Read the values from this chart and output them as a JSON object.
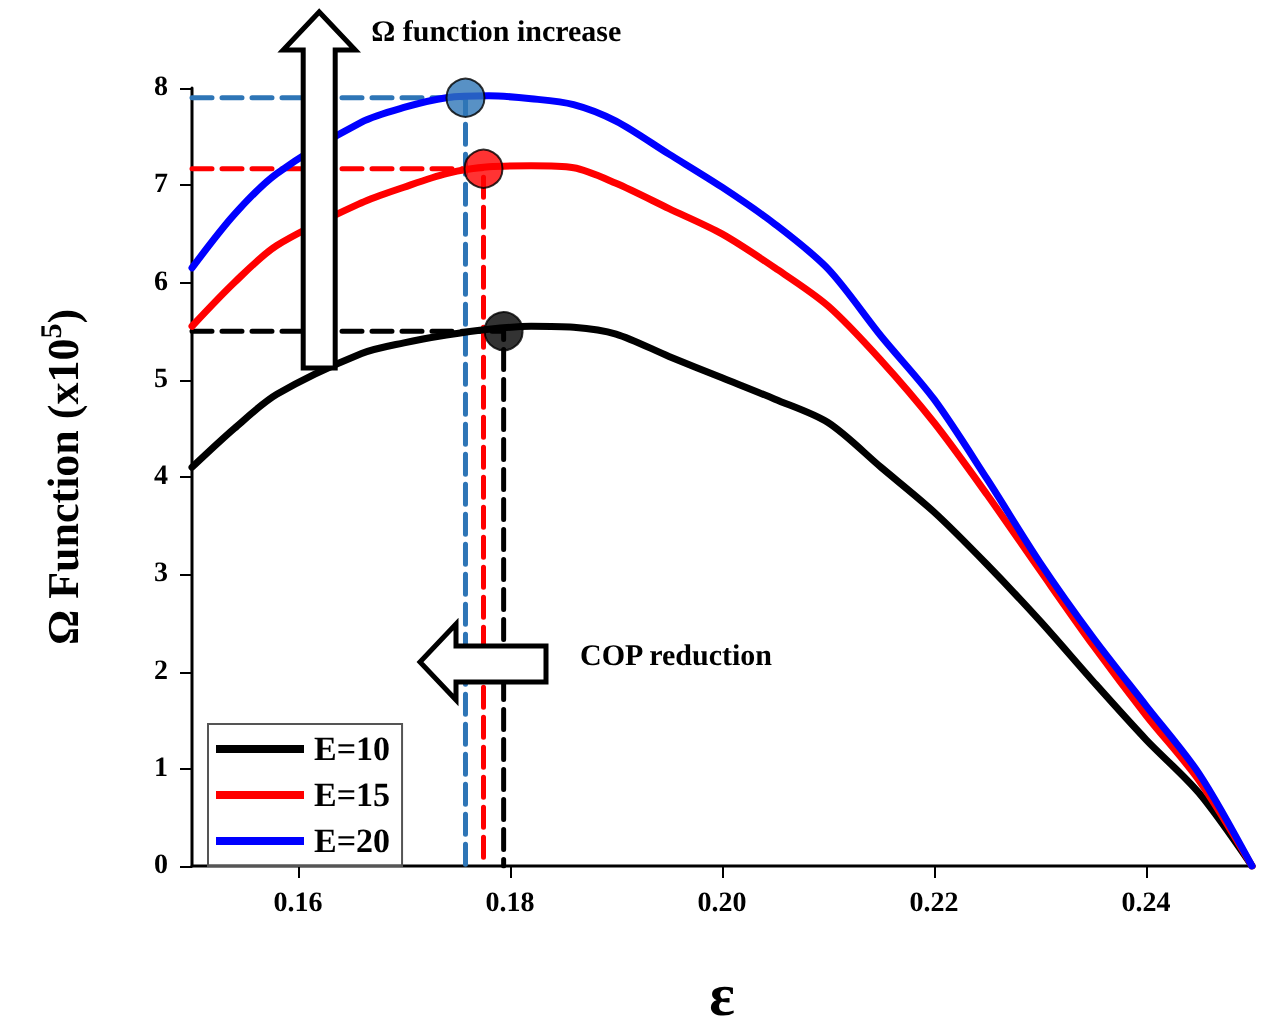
{
  "chart_data": {
    "type": "line",
    "xlabel": "ε",
    "ylabel": "Ω Function (x10$^{5}$)",
    "xlim": [
      0.15,
      0.25
    ],
    "xticks": [
      0.16,
      0.18,
      {
        "value": 0.2,
        "label": "0.20"
      },
      0.22,
      0.24
    ],
    "ylim": [
      0,
      8
    ],
    "yticks": [
      0,
      1,
      2,
      3,
      4,
      5,
      6,
      7,
      8
    ],
    "grid": false,
    "legend": "bottom left",
    "line_style": "solid",
    "marker": "none",
    "annotations": [
      {
        "text": "Ω function increase",
        "x": 0.162,
        "y": 8
      },
      "COP reduction"
    ],
    "series": [
      {
        "name": "E=10",
        "color": "#000000",
        "x": [
          0.15,
          0.154,
          0.158,
          0.166,
          0.17,
          0.174,
          0.178,
          0.182,
          0.186,
          0.19,
          0.195,
          0.2,
          0.205,
          0.21,
          0.215,
          0.22,
          0.225,
          0.23,
          0.235,
          0.24,
          0.245,
          0.25
        ],
        "values": [
          4.1,
          4.5,
          4.85,
          5.27,
          5.38,
          5.46,
          5.52,
          5.55,
          5.54,
          5.47,
          5.24,
          5.02,
          4.8,
          4.56,
          4.1,
          3.64,
          3.1,
          2.52,
          1.9,
          1.3,
          0.75,
          0
        ]
      },
      {
        "name": "E=15",
        "color": "#ff0000",
        "x": [
          0.15,
          0.154,
          0.158,
          0.166,
          0.17,
          0.174,
          0.178,
          0.182,
          0.186,
          0.19,
          0.195,
          0.2,
          0.205,
          0.21,
          0.215,
          0.22,
          0.225,
          0.23,
          0.235,
          0.24,
          0.245,
          0.25
        ],
        "values": [
          5.55,
          6.0,
          6.38,
          6.82,
          6.98,
          7.12,
          7.19,
          7.2,
          7.18,
          7.02,
          6.76,
          6.5,
          6.15,
          5.76,
          5.2,
          4.56,
          3.82,
          3.04,
          2.27,
          1.55,
          0.88,
          0
        ]
      },
      {
        "name": "E=20",
        "color": "#0000ff",
        "x": [
          0.15,
          0.154,
          0.158,
          0.166,
          0.17,
          0.174,
          0.178,
          0.182,
          0.186,
          0.19,
          0.195,
          0.2,
          0.205,
          0.21,
          0.215,
          0.22,
          0.225,
          0.23,
          0.235,
          0.24,
          0.245,
          0.25
        ],
        "values": [
          6.15,
          6.7,
          7.12,
          7.65,
          7.8,
          7.9,
          7.92,
          7.89,
          7.83,
          7.66,
          7.32,
          6.98,
          6.6,
          6.14,
          5.45,
          4.8,
          3.98,
          3.12,
          2.35,
          1.65,
          0.95,
          0
        ]
      },
      {
        "type": "line",
        "line_style": "dashed",
        "color": "#000000",
        "x": [
          0.15,
          0.1794,
          0.1794
        ],
        "values": [
          5.5,
          5.5,
          0
        ]
      },
      {
        "type": "line",
        "line_style": "dashed",
        "color": "#ff0000",
        "x": [
          0.15,
          0.1775,
          0.1775
        ],
        "values": [
          7.17,
          7.17,
          0
        ]
      },
      {
        "type": "line",
        "line_style": "dashed",
        "color": "#2e75b6",
        "x": [
          0.15,
          0.1758,
          0.1758
        ],
        "values": [
          7.9,
          7.9,
          0
        ]
      },
      {
        "type": "scatter",
        "marker": "circle",
        "color": "#000000",
        "x": [
          0.1794
        ],
        "values": [
          5.5
        ]
      },
      {
        "type": "scatter",
        "marker": "circle",
        "color": "#ff0000",
        "x": [
          0.1775
        ],
        "values": [
          7.17
        ]
      },
      {
        "type": "scatter",
        "marker": "circle",
        "color": "#2e75b6",
        "x": [
          0.1758
        ],
        "values": [
          7.9
        ]
      }
    ]
  }
}
